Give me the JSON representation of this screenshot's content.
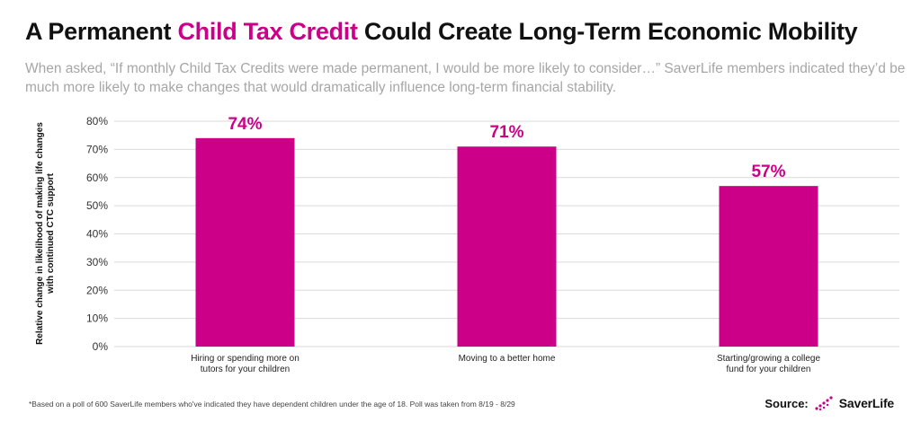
{
  "header": {
    "title_before": "A Permanent ",
    "title_highlight": "Child Tax Credit",
    "title_after": " Could Create Long-Term Economic Mobility",
    "subtitle": "When asked, “If monthly Child Tax Credits were made permanent, I would be more likely to consider…” SaverLife members indicated they’d be much more likely to make changes that would dramatically influence long-term financial stability."
  },
  "chart_data": {
    "type": "bar",
    "categories": [
      [
        "Hiring or spending more on",
        "tutors for your children"
      ],
      [
        "Moving to a better home"
      ],
      [
        "Starting/growing a college",
        "fund for your children"
      ]
    ],
    "values": [
      74,
      71,
      57
    ],
    "data_labels": [
      "74%",
      "71%",
      "57%"
    ],
    "ylabel": "Relative change in likelihood of making life changes with continued CTC support",
    "ylim": [
      0,
      80
    ],
    "yticks": [
      "0%",
      "10%",
      "20%",
      "30%",
      "40%",
      "50%",
      "60%",
      "70%",
      "80%"
    ],
    "grid": true,
    "bar_color": "#cc0088"
  },
  "footer": {
    "footnote": "*Based on a poll of 600 SaverLife members who've indicated they have dependent children under the age of 18. Poll was taken from 8/19 - 8/29",
    "source_label": "Source:",
    "brand": "SaverLife",
    "brand_mark": "saverlife-logo-icon"
  },
  "colors": {
    "accent": "#cc0088",
    "subtitle": "#a6a6a6",
    "grid": "#d9d9d9"
  }
}
